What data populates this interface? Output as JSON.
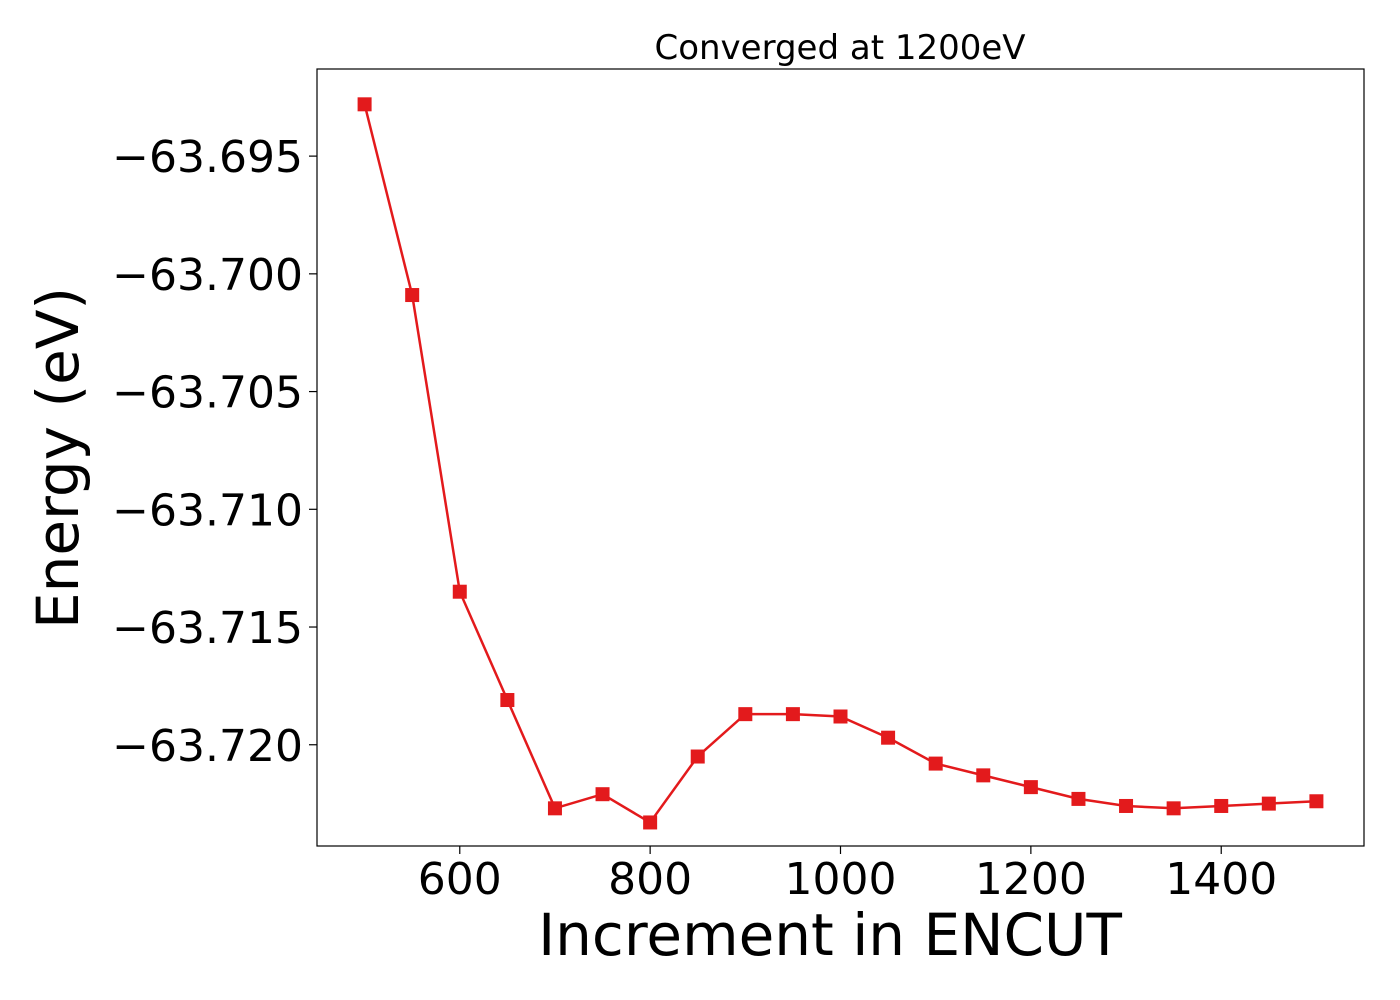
{
  "chart_data": {
    "type": "line",
    "title": "Converged at 1200eV",
    "xlabel": "Increment in ENCUT",
    "ylabel": "Energy (eV)",
    "xlim": [
      450,
      1550
    ],
    "ylim": [
      -63.7243,
      -63.6913
    ],
    "x_ticks": [
      600,
      800,
      1000,
      1200,
      1400
    ],
    "x_tick_labels": [
      "600",
      "800",
      "1000",
      "1200",
      "1400"
    ],
    "y_ticks": [
      -63.695,
      -63.7,
      -63.705,
      -63.71,
      -63.715,
      -63.72
    ],
    "y_tick_labels": [
      "−63.695",
      "−63.700",
      "−63.705",
      "−63.710",
      "−63.715",
      "−63.720"
    ],
    "grid": false,
    "legend": null,
    "series": [
      {
        "color": "#e31a1c",
        "marker": "square",
        "x": [
          500,
          550,
          600,
          650,
          700,
          750,
          800,
          850,
          900,
          950,
          1000,
          1050,
          1100,
          1150,
          1200,
          1250,
          1300,
          1350,
          1400,
          1450,
          1500
        ],
        "y": [
          -63.6928,
          -63.7009,
          -63.7135,
          -63.7181,
          -63.7227,
          -63.7221,
          -63.7233,
          -63.7205,
          -63.7187,
          -63.7187,
          -63.7188,
          -63.7197,
          -63.7208,
          -63.7213,
          -63.7218,
          -63.7223,
          -63.7226,
          -63.7227,
          -63.7226,
          -63.7225,
          -63.7224
        ]
      }
    ]
  }
}
